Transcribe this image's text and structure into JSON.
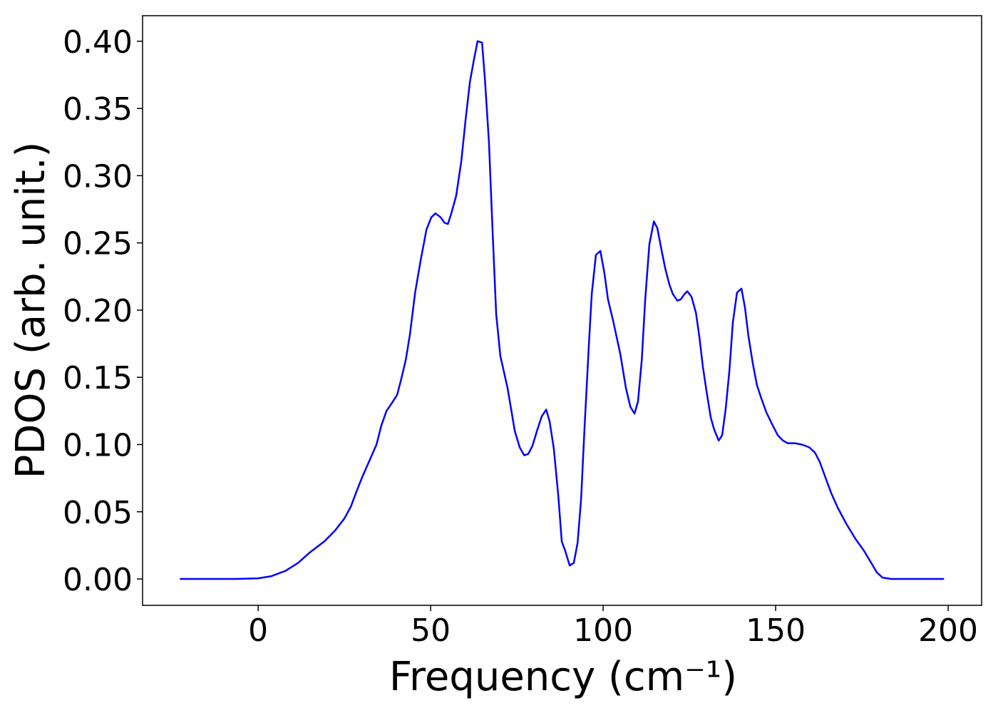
{
  "chart_data": {
    "type": "line",
    "xlabel": "Frequency (cm⁻¹)",
    "ylabel": "PDOS (arb. unit.)",
    "xlim": [
      -33.5,
      209.7
    ],
    "ylim": [
      -0.0196,
      0.419
    ],
    "xticks": [
      0,
      50,
      100,
      150,
      200
    ],
    "yticks": [
      {
        "value": 0,
        "label": "0.00"
      },
      0.05,
      {
        "value": 0.1,
        "label": "0.10"
      },
      0.15,
      {
        "value": 0.2,
        "label": "0.20"
      },
      0.25,
      {
        "value": 0.3,
        "label": "0.30"
      },
      0.35,
      {
        "value": 0.4,
        "label": "0.40"
      }
    ],
    "grid": false,
    "series": [
      {
        "name": "PDOS",
        "color": "#0000ff",
        "x": [
          -22.7,
          -6.6,
          0,
          3.7,
          7.9,
          11.6,
          15.1,
          19.2,
          22.3,
          25,
          26.9,
          28.5,
          30.2,
          32.6,
          34.3,
          35.7,
          37.2,
          38.8,
          40.3,
          41.5,
          42.8,
          44,
          45.5,
          47.1,
          48.8,
          50.2,
          51.4,
          52.9,
          54,
          55,
          56,
          57.4,
          58.9,
          60.1,
          61.4,
          62.6,
          63.6,
          64.9,
          65.7,
          66.9,
          68,
          69,
          70.2,
          72.3,
          74.4,
          75.8,
          77.1,
          78.3,
          79.5,
          80.8,
          82.2,
          83.5,
          84.5,
          85.7,
          87,
          88,
          89,
          90.3,
          91.5,
          92.6,
          93.6,
          94.6,
          95.9,
          96.7,
          97.9,
          99.2,
          100.4,
          101.4,
          102.9,
          105,
          106.6,
          107.9,
          109.1,
          110.1,
          111.2,
          112.2,
          113.4,
          114.7,
          115.7,
          116.9,
          118,
          119.2,
          120.2,
          121.5,
          122.5,
          123.6,
          124.4,
          125.6,
          126.9,
          127.9,
          128.9,
          130,
          131.2,
          132.2,
          133.5,
          134.5,
          135.5,
          136.6,
          137.6,
          138.8,
          140.1,
          141.1,
          142.1,
          143.4,
          144.6,
          145.9,
          147.3,
          149,
          150.6,
          152.1,
          153.5,
          155.6,
          157.6,
          159.7,
          161.4,
          162.8,
          164.5,
          166.1,
          168,
          170.5,
          173.1,
          175.6,
          177.7,
          179.3,
          181,
          183.5,
          198.8
        ],
        "values": [
          0,
          0,
          0.0005,
          0.002,
          0.006,
          0.012,
          0.02,
          0.028,
          0.036,
          0.045,
          0.054,
          0.065,
          0.076,
          0.09,
          0.1,
          0.114,
          0.125,
          0.131,
          0.137,
          0.149,
          0.163,
          0.182,
          0.213,
          0.237,
          0.26,
          0.269,
          0.272,
          0.269,
          0.265,
          0.264,
          0.272,
          0.285,
          0.311,
          0.341,
          0.37,
          0.387,
          0.4,
          0.399,
          0.373,
          0.325,
          0.256,
          0.197,
          0.166,
          0.142,
          0.11,
          0.098,
          0.092,
          0.093,
          0.099,
          0.11,
          0.121,
          0.126,
          0.117,
          0.097,
          0.062,
          0.028,
          0.021,
          0.01,
          0.012,
          0.027,
          0.059,
          0.112,
          0.176,
          0.212,
          0.241,
          0.244,
          0.227,
          0.208,
          0.192,
          0.167,
          0.142,
          0.128,
          0.123,
          0.132,
          0.163,
          0.208,
          0.249,
          0.266,
          0.261,
          0.245,
          0.231,
          0.219,
          0.212,
          0.207,
          0.208,
          0.212,
          0.214,
          0.21,
          0.198,
          0.18,
          0.158,
          0.139,
          0.12,
          0.111,
          0.103,
          0.107,
          0.126,
          0.155,
          0.191,
          0.213,
          0.216,
          0.202,
          0.181,
          0.16,
          0.144,
          0.134,
          0.124,
          0.115,
          0.107,
          0.103,
          0.101,
          0.101,
          0.1,
          0.098,
          0.094,
          0.087,
          0.075,
          0.064,
          0.053,
          0.041,
          0.03,
          0.021,
          0.012,
          0.005,
          0.001,
          0,
          0
        ]
      }
    ]
  }
}
